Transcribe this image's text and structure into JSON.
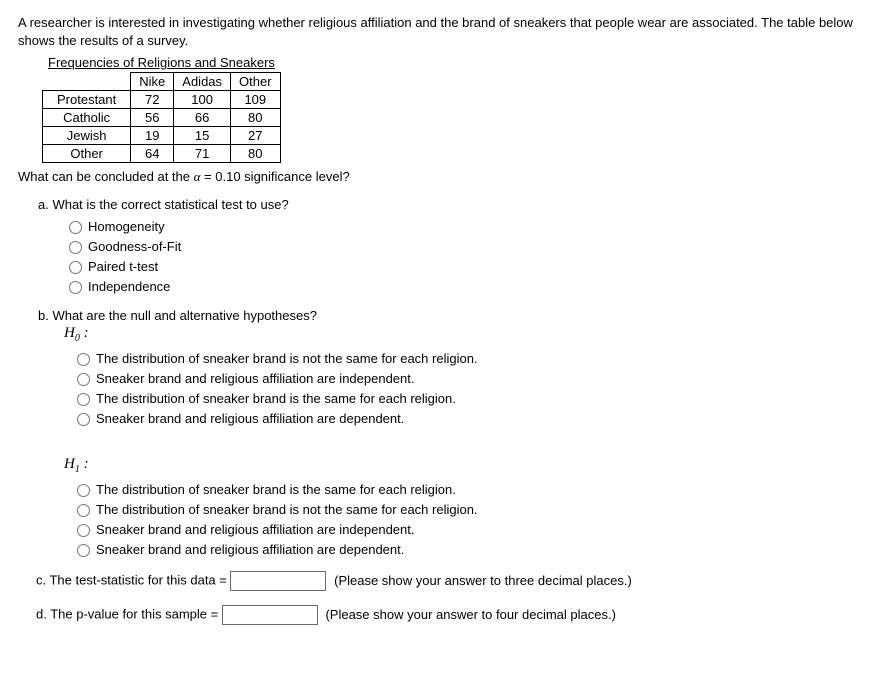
{
  "intro": "A researcher is interested in investigating whether religious affiliation and the brand of sneakers that people wear are associated. The table below shows the results of a survey.",
  "table_title": "Frequencies of Religions and Sneakers",
  "table": {
    "columns": [
      "Nike",
      "Adidas",
      "Other"
    ],
    "rows": [
      {
        "label": "Protestant",
        "values": [
          72,
          100,
          109
        ]
      },
      {
        "label": "Catholic",
        "values": [
          56,
          66,
          80
        ]
      },
      {
        "label": "Jewish",
        "values": [
          19,
          15,
          27
        ]
      },
      {
        "label": "Other",
        "values": [
          64,
          71,
          80
        ]
      }
    ]
  },
  "question_stem": {
    "pre": "What can be concluded at the ",
    "alpha": "α",
    "mid": " = 0.10 significance level?"
  },
  "parts": {
    "a": {
      "label": "a. What is the correct statistical test to use?",
      "options": [
        "Homogeneity",
        "Goodness-of-Fit",
        "Paired t-test",
        "Independence"
      ]
    },
    "b": {
      "label": "b. What are the null and alternative hypotheses?",
      "h0_label": "H",
      "h0_sub": "0",
      "h0_colon": " :",
      "h0_options": [
        "The distribution of sneaker brand is not the same for each religion.",
        "Sneaker brand and religious affiliation are independent.",
        "The distribution of sneaker brand is the same for each religion.",
        "Sneaker brand and religious affiliation are dependent."
      ],
      "h1_label": "H",
      "h1_sub": "1",
      "h1_colon": " :",
      "h1_options": [
        "The distribution of sneaker brand is the same for each religion.",
        "The distribution of sneaker brand is not the same for each religion.",
        "Sneaker brand and religious affiliation are independent.",
        "Sneaker brand and religious affiliation are dependent."
      ]
    },
    "c": {
      "label": "c. The test-statistic for this data = ",
      "hint": "(Please show your answer to three decimal places.)"
    },
    "d": {
      "label": "d. The p-value for this sample = ",
      "hint": "(Please show your answer to four decimal places.)"
    }
  }
}
